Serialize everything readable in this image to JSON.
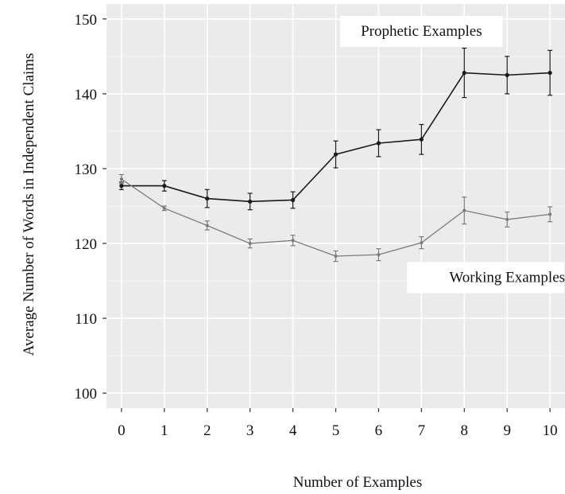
{
  "chart_data": {
    "type": "line",
    "title": "",
    "xlabel": "Number of Examples",
    "ylabel": "Average Number of Words in Independent Claims",
    "x": [
      0,
      1,
      2,
      3,
      4,
      5,
      6,
      7,
      8,
      9,
      10
    ],
    "xlim": [
      -0.35,
      10.35
    ],
    "ylim": [
      98,
      152
    ],
    "x_ticks": [
      0,
      1,
      2,
      3,
      4,
      5,
      6,
      7,
      8,
      9,
      10
    ],
    "y_ticks": [
      100,
      110,
      120,
      130,
      140,
      150
    ],
    "grid": true,
    "legend": "inline-labels",
    "series": [
      {
        "name": "Prophetic Examples",
        "color": "#1a1a1a",
        "values": [
          127.7,
          127.7,
          126.0,
          125.6,
          125.8,
          131.9,
          133.4,
          133.9,
          142.8,
          142.5,
          142.8
        ],
        "error": [
          0.5,
          0.7,
          1.2,
          1.1,
          1.1,
          1.8,
          1.8,
          2.0,
          3.3,
          2.5,
          3.0
        ],
        "label": {
          "text": "Prophetic Examples",
          "anchor_x": 7.0,
          "anchor_y": 148.5
        }
      },
      {
        "name": "Working Examples",
        "color": "#7a7a7a",
        "values": [
          128.6,
          124.7,
          122.4,
          120.0,
          120.4,
          118.3,
          118.5,
          120.1,
          124.4,
          123.2,
          123.9
        ],
        "error": [
          0.6,
          0.3,
          0.6,
          0.6,
          0.7,
          0.7,
          0.8,
          0.8,
          1.8,
          1.0,
          1.0
        ],
        "label": {
          "text": "Working Examples",
          "anchor_x": 9.0,
          "anchor_y": 115.6
        }
      }
    ]
  }
}
